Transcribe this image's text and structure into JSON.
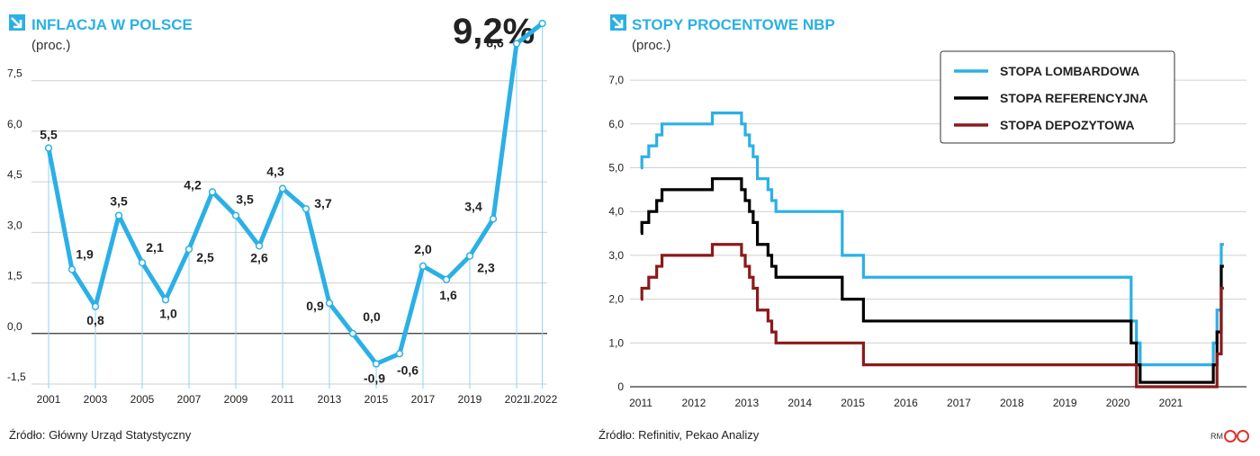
{
  "chart_data": [
    {
      "type": "line",
      "title": "INFLACJA W POLSCE",
      "subtitle": "(proc.)",
      "highlight": "9,2%",
      "source": "Źródło: Główny Urząd Statystyczny",
      "color": "#2bb0e6",
      "ylim": [
        -1.5,
        9.2
      ],
      "yticks": [
        "7,5",
        "6,0",
        "4,5",
        "3,0",
        "1,5",
        "0,0",
        "-1,5"
      ],
      "ytick_values": [
        7.5,
        6.0,
        4.5,
        3.0,
        1.5,
        0.0,
        -1.5
      ],
      "xticks": [
        "2001",
        "2003",
        "2005",
        "2007",
        "2009",
        "2011",
        "2013",
        "2015",
        "2017",
        "2019",
        "2021",
        "I.2022"
      ],
      "xtick_values": [
        2001,
        2003,
        2005,
        2007,
        2009,
        2011,
        2013,
        2015,
        2017,
        2019,
        2021,
        2022.1
      ],
      "x": [
        2001,
        2002,
        2003,
        2004,
        2005,
        2006,
        2007,
        2008,
        2009,
        2010,
        2011,
        2012,
        2013,
        2014,
        2015,
        2016,
        2017,
        2018,
        2019,
        2020,
        2021,
        2022.1
      ],
      "values": [
        5.5,
        1.9,
        0.8,
        3.5,
        2.1,
        1.0,
        2.5,
        4.2,
        3.5,
        2.6,
        4.3,
        3.7,
        0.9,
        0.0,
        -0.9,
        -0.6,
        2.0,
        1.6,
        2.3,
        3.4,
        8.6,
        9.2
      ],
      "labels": [
        "5,5",
        "1,9",
        "0,8",
        "3,5",
        "2,1",
        "1,0",
        "2,5",
        "4,2",
        "3,5",
        "2,6",
        "4,3",
        "3,7",
        "0,9",
        "0,0",
        "-0,9",
        "-0,6",
        "2,0",
        "1,6",
        "2,3",
        "3,4",
        "8,6",
        ""
      ]
    },
    {
      "type": "line",
      "title": "STOPY PROCENTOWE NBP",
      "subtitle": "(proc.)",
      "source": "Źródło: Refinitiv, Pekao Analizy",
      "ylim": [
        0,
        7.0
      ],
      "yticks": [
        "7,0",
        "6,0",
        "5,0",
        "4,0",
        "3,0",
        "2,0",
        "1,0",
        "0"
      ],
      "ytick_values": [
        7,
        6,
        5,
        4,
        3,
        2,
        1,
        0
      ],
      "xticks": [
        "2011",
        "2012",
        "2013",
        "2014",
        "2015",
        "2016",
        "2017",
        "2018",
        "2019",
        "2020",
        "2021"
      ],
      "xtick_values": [
        2011,
        2012,
        2013,
        2014,
        2015,
        2016,
        2017,
        2018,
        2019,
        2020,
        2021
      ],
      "legend_position": "top-right",
      "series": [
        {
          "name": "STOPA LOMBARDOWA",
          "color": "#2bb0e6",
          "points": [
            [
              2011.0,
              5.0
            ],
            [
              2011.02,
              5.25
            ],
            [
              2011.15,
              5.5
            ],
            [
              2011.3,
              5.75
            ],
            [
              2011.4,
              6.0
            ],
            [
              2012.35,
              6.25
            ],
            [
              2012.9,
              6.0
            ],
            [
              2012.97,
              5.75
            ],
            [
              2013.05,
              5.5
            ],
            [
              2013.12,
              5.25
            ],
            [
              2013.2,
              4.75
            ],
            [
              2013.4,
              4.5
            ],
            [
              2013.47,
              4.25
            ],
            [
              2013.55,
              4.0
            ],
            [
              2014.8,
              3.0
            ],
            [
              2015.2,
              2.5
            ],
            [
              2020.25,
              1.5
            ],
            [
              2020.35,
              1.0
            ],
            [
              2020.42,
              0.5
            ],
            [
              2021.8,
              1.0
            ],
            [
              2021.87,
              1.75
            ],
            [
              2021.95,
              3.25
            ],
            [
              2022.0,
              3.25
            ]
          ]
        },
        {
          "name": "STOPA REFERENCYJNA",
          "color": "#000000",
          "points": [
            [
              2011.0,
              3.5
            ],
            [
              2011.02,
              3.75
            ],
            [
              2011.15,
              4.0
            ],
            [
              2011.3,
              4.25
            ],
            [
              2011.4,
              4.5
            ],
            [
              2012.35,
              4.75
            ],
            [
              2012.9,
              4.5
            ],
            [
              2012.97,
              4.25
            ],
            [
              2013.05,
              4.0
            ],
            [
              2013.12,
              3.75
            ],
            [
              2013.2,
              3.25
            ],
            [
              2013.4,
              3.0
            ],
            [
              2013.47,
              2.75
            ],
            [
              2013.55,
              2.5
            ],
            [
              2014.8,
              2.0
            ],
            [
              2015.2,
              1.5
            ],
            [
              2020.25,
              1.0
            ],
            [
              2020.35,
              0.5
            ],
            [
              2020.42,
              0.1
            ],
            [
              2021.8,
              0.5
            ],
            [
              2021.87,
              1.25
            ],
            [
              2021.95,
              2.75
            ],
            [
              2022.0,
              2.75
            ]
          ]
        },
        {
          "name": "STOPA DEPOZYTOWA",
          "color": "#8b1a1a",
          "points": [
            [
              2011.0,
              2.0
            ],
            [
              2011.02,
              2.25
            ],
            [
              2011.15,
              2.5
            ],
            [
              2011.3,
              2.75
            ],
            [
              2011.4,
              3.0
            ],
            [
              2012.35,
              3.25
            ],
            [
              2012.9,
              3.0
            ],
            [
              2012.97,
              2.75
            ],
            [
              2013.05,
              2.5
            ],
            [
              2013.12,
              2.25
            ],
            [
              2013.2,
              1.75
            ],
            [
              2013.4,
              1.5
            ],
            [
              2013.47,
              1.25
            ],
            [
              2013.55,
              1.0
            ],
            [
              2014.8,
              1.0
            ],
            [
              2015.2,
              0.5
            ],
            [
              2020.25,
              0.5
            ],
            [
              2020.35,
              0.0
            ],
            [
              2020.42,
              0.0
            ],
            [
              2021.8,
              0.0
            ],
            [
              2021.87,
              0.75
            ],
            [
              2021.95,
              2.25
            ],
            [
              2022.0,
              2.25
            ]
          ]
        }
      ]
    }
  ],
  "footer": {
    "logo_initials": "RM"
  }
}
